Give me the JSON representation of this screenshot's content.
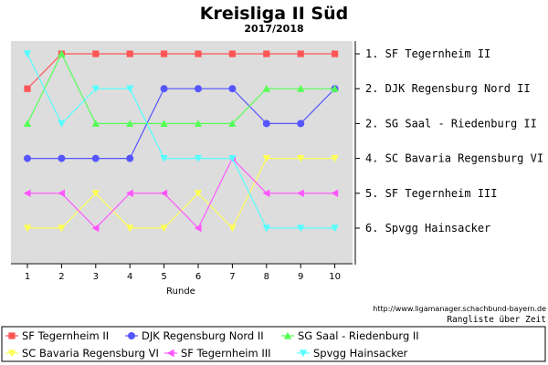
{
  "chart_data": {
    "type": "line",
    "title": "Kreisliga II Süd",
    "subtitle": "2017/2018",
    "xlabel": "Runde",
    "x": [
      1,
      2,
      3,
      4,
      5,
      6,
      7,
      8,
      9,
      10
    ],
    "ylim": [
      1,
      6
    ],
    "y_inverted": true,
    "grid": false,
    "legend": "bottom",
    "rank_labels": [
      "1. SF Tegernheim II",
      "2. DJK Regensburg Nord II",
      "2. SG Saal - Riedenburg II",
      "4. SC Bavaria Regensburg VI",
      "5. SF Tegernheim III",
      "6. Spvgg Hainsacker"
    ],
    "series": [
      {
        "name": "SF Tegernheim II",
        "color": "#ff5555",
        "marker": "square",
        "values": [
          2,
          1,
          1,
          1,
          1,
          1,
          1,
          1,
          1,
          1
        ]
      },
      {
        "name": "DJK Regensburg Nord II",
        "color": "#5555ff",
        "marker": "circle",
        "values": [
          4,
          4,
          4,
          4,
          2,
          2,
          2,
          3,
          3,
          2
        ]
      },
      {
        "name": "SG Saal - Riedenburg II",
        "color": "#55ff55",
        "marker": "triangle-up",
        "values": [
          3,
          1,
          3,
          3,
          3,
          3,
          3,
          2,
          2,
          2
        ]
      },
      {
        "name": "SC Bavaria Regensburg VI",
        "color": "#ffff55",
        "marker": "triangle-down",
        "values": [
          6,
          6,
          5,
          6,
          6,
          5,
          6,
          4,
          4,
          4
        ]
      },
      {
        "name": "SF Tegernheim III",
        "color": "#ff55ff",
        "marker": "triangle-left",
        "values": [
          5,
          5,
          6,
          5,
          5,
          6,
          4,
          5,
          5,
          5
        ]
      },
      {
        "name": "Spvgg Hainsacker",
        "color": "#55ffff",
        "marker": "triangle-down",
        "values": [
          1,
          3,
          2,
          2,
          4,
          4,
          4,
          6,
          6,
          6
        ]
      }
    ]
  },
  "footer": {
    "url": "http://www.ligamanager.schachbund-bayern.de",
    "caption": "Rangliste über Zeit"
  }
}
